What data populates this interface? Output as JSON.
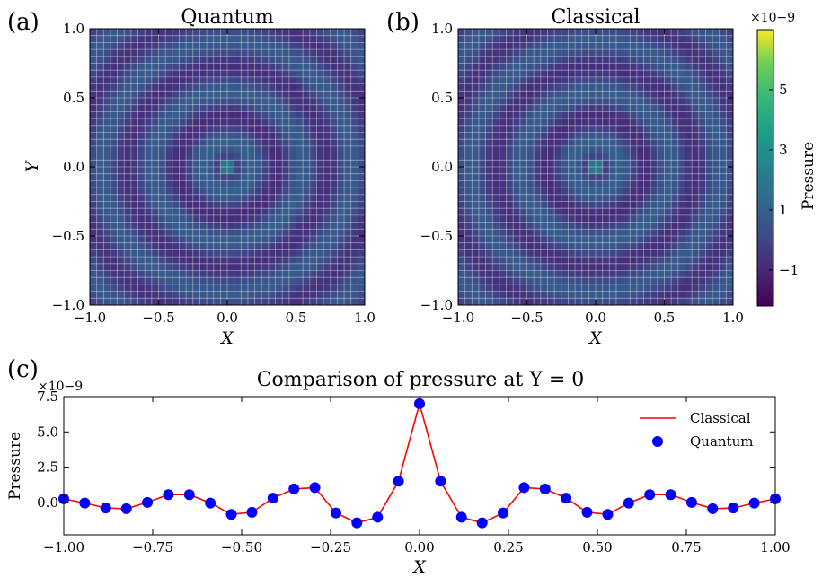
{
  "chart_data": [
    {
      "type": "heatmap",
      "panel_label": "(a)",
      "title": "Quantum",
      "xlabel": "X",
      "ylabel": "Y",
      "xlim": [
        -1.0,
        1.0
      ],
      "ylim": [
        -1.0,
        1.0
      ],
      "xticks": [
        "−1.0",
        "−0.5",
        "0.0",
        "0.5",
        "1.0"
      ],
      "yticks": [
        "−1.0",
        "−0.5",
        "0.0",
        "0.5",
        "1.0"
      ],
      "grid_cells": 40,
      "field": "concentric rings, peak at (0, 0)"
    },
    {
      "type": "heatmap",
      "panel_label": "(b)",
      "title": "Classical",
      "xlabel": "X",
      "ylabel": "",
      "xlim": [
        -1.0,
        1.0
      ],
      "ylim": [
        -1.0,
        1.0
      ],
      "xticks": [
        "−1.0",
        "−0.5",
        "0.0",
        "0.5",
        "1.0"
      ],
      "yticks": [
        "−1.0",
        "−0.5",
        "0.0",
        "0.5",
        "1.0"
      ],
      "grid_cells": 40,
      "field": "concentric rings, peak at (0, 0)"
    },
    {
      "type": "colorbar",
      "label": "Pressure",
      "scale_exponent": "×10−9",
      "range": [
        -2.2,
        7.0
      ],
      "ticks": [
        -1,
        1,
        3,
        5
      ],
      "tick_labels": [
        "−1",
        "1",
        "3",
        "5"
      ],
      "colormap": "viridis"
    },
    {
      "type": "line",
      "panel_label": "(c)",
      "title": "Comparison of pressure at Y = 0",
      "xlabel": "X",
      "ylabel": "Pressure",
      "y_scale_exponent": "×10−9",
      "xlim": [
        -1.0,
        1.0
      ],
      "ylim": [
        -2.3,
        7.5
      ],
      "xticks": [
        "−1.00",
        "−0.75",
        "−0.50",
        "−0.25",
        "0.00",
        "0.25",
        "0.50",
        "0.75",
        "1.00"
      ],
      "yticks": [
        "0.0",
        "2.5",
        "5.0",
        "7.5"
      ],
      "legend_position": "top-right",
      "x": [
        -1.0,
        -0.941,
        -0.882,
        -0.824,
        -0.765,
        -0.706,
        -0.647,
        -0.588,
        -0.529,
        -0.471,
        -0.412,
        -0.353,
        -0.294,
        -0.235,
        -0.176,
        -0.118,
        -0.059,
        0.0,
        0.059,
        0.118,
        0.176,
        0.235,
        0.294,
        0.353,
        0.412,
        0.471,
        0.529,
        0.588,
        0.647,
        0.706,
        0.765,
        0.824,
        0.882,
        0.941,
        1.0
      ],
      "series": [
        {
          "name": "Classical",
          "style": "line",
          "color": "#ff0000",
          "values": [
            0.25,
            -0.05,
            -0.4,
            -0.45,
            0.0,
            0.55,
            0.55,
            -0.05,
            -0.85,
            -0.7,
            0.3,
            0.95,
            1.05,
            -0.75,
            -1.45,
            -1.05,
            1.5,
            7.0,
            1.5,
            -1.05,
            -1.45,
            -0.75,
            1.05,
            0.95,
            0.3,
            -0.7,
            -0.85,
            -0.05,
            0.55,
            0.55,
            0.0,
            -0.45,
            -0.4,
            -0.05,
            0.25
          ]
        },
        {
          "name": "Quantum",
          "style": "marker",
          "color": "#0000ff",
          "values": [
            0.25,
            -0.05,
            -0.4,
            -0.45,
            0.0,
            0.55,
            0.55,
            -0.05,
            -0.85,
            -0.7,
            0.3,
            0.95,
            1.05,
            -0.75,
            -1.45,
            -1.05,
            1.5,
            7.0,
            1.5,
            -1.05,
            -1.45,
            -0.75,
            1.05,
            0.95,
            0.3,
            -0.7,
            -0.85,
            -0.05,
            0.55,
            0.55,
            0.0,
            -0.45,
            -0.4,
            -0.05,
            0.25
          ]
        }
      ]
    }
  ]
}
